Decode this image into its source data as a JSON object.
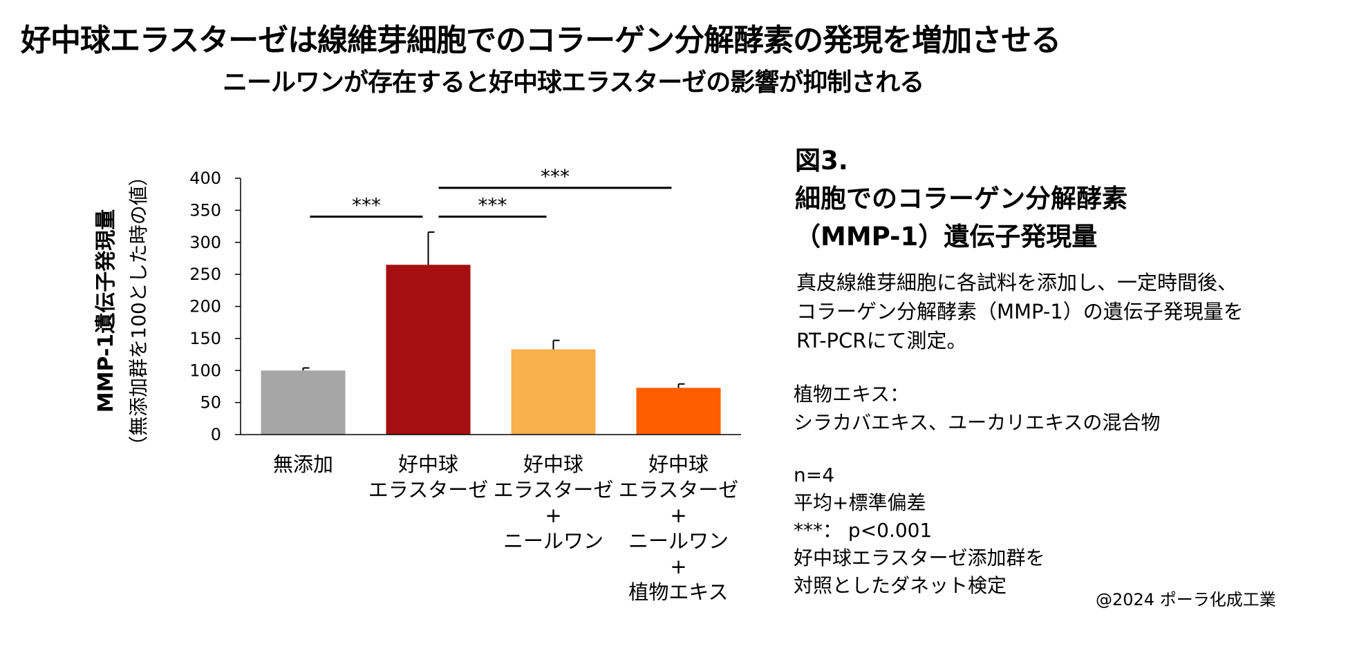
{
  "header": {
    "title": "好中球エラスターゼは線維芽細胞でのコラーゲン分解酵素の発現を増加させる",
    "subtitle": "ニールワンが存在すると好中球エラスターゼの影響が抑制される"
  },
  "figure": {
    "title_lines": [
      "図3.",
      "細胞でのコラーゲン分解酵素",
      "（MMP-1）遺伝子発現量"
    ],
    "description_lines": [
      "真皮線維芽細胞に各試料を添加し、一定時間後、",
      "コラーゲン分解酵素（MMP-1）の遺伝子発現量を",
      "RT-PCRにて測定。"
    ],
    "plant_note_lines": [
      "植物エキス：",
      "シラカバエキス、ユーカリエキスの混合物"
    ],
    "stats_lines": [
      "n=4",
      "平均+標準偏差",
      "***： p<0.001",
      "好中球エラスターゼ添加群を",
      "対照としたダネット検定"
    ]
  },
  "footer": {
    "copyright": "@2024 ポーラ化成工業"
  },
  "chart_data": {
    "type": "bar",
    "title": "",
    "ylabel": "MMP-1遺伝子発現量",
    "ylabel_sub": "（無添加群を100とした時の値）",
    "xlabel": "",
    "ylim": [
      0,
      400
    ],
    "yticks": [
      0,
      50,
      100,
      150,
      200,
      250,
      300,
      350,
      400
    ],
    "grid": false,
    "categories": [
      [
        "無添加"
      ],
      [
        "好中球",
        "エラスターゼ"
      ],
      [
        "好中球",
        "エラスターゼ",
        "+",
        "ニールワン"
      ],
      [
        "好中球",
        "エラスターゼ",
        "+",
        "ニールワン",
        "+",
        "植物エキス"
      ]
    ],
    "values": [
      100,
      265,
      133,
      73
    ],
    "errors": [
      4,
      51,
      14,
      6
    ],
    "colors": [
      "#a6a6a6",
      "#a50f0f",
      "#f8b04c",
      "#fd5f00"
    ],
    "significance": [
      {
        "from": 0,
        "to": 1,
        "label": "***"
      },
      {
        "from": 1,
        "to": 2,
        "label": "***"
      },
      {
        "from": 1,
        "to": 3,
        "label": "***"
      }
    ]
  }
}
